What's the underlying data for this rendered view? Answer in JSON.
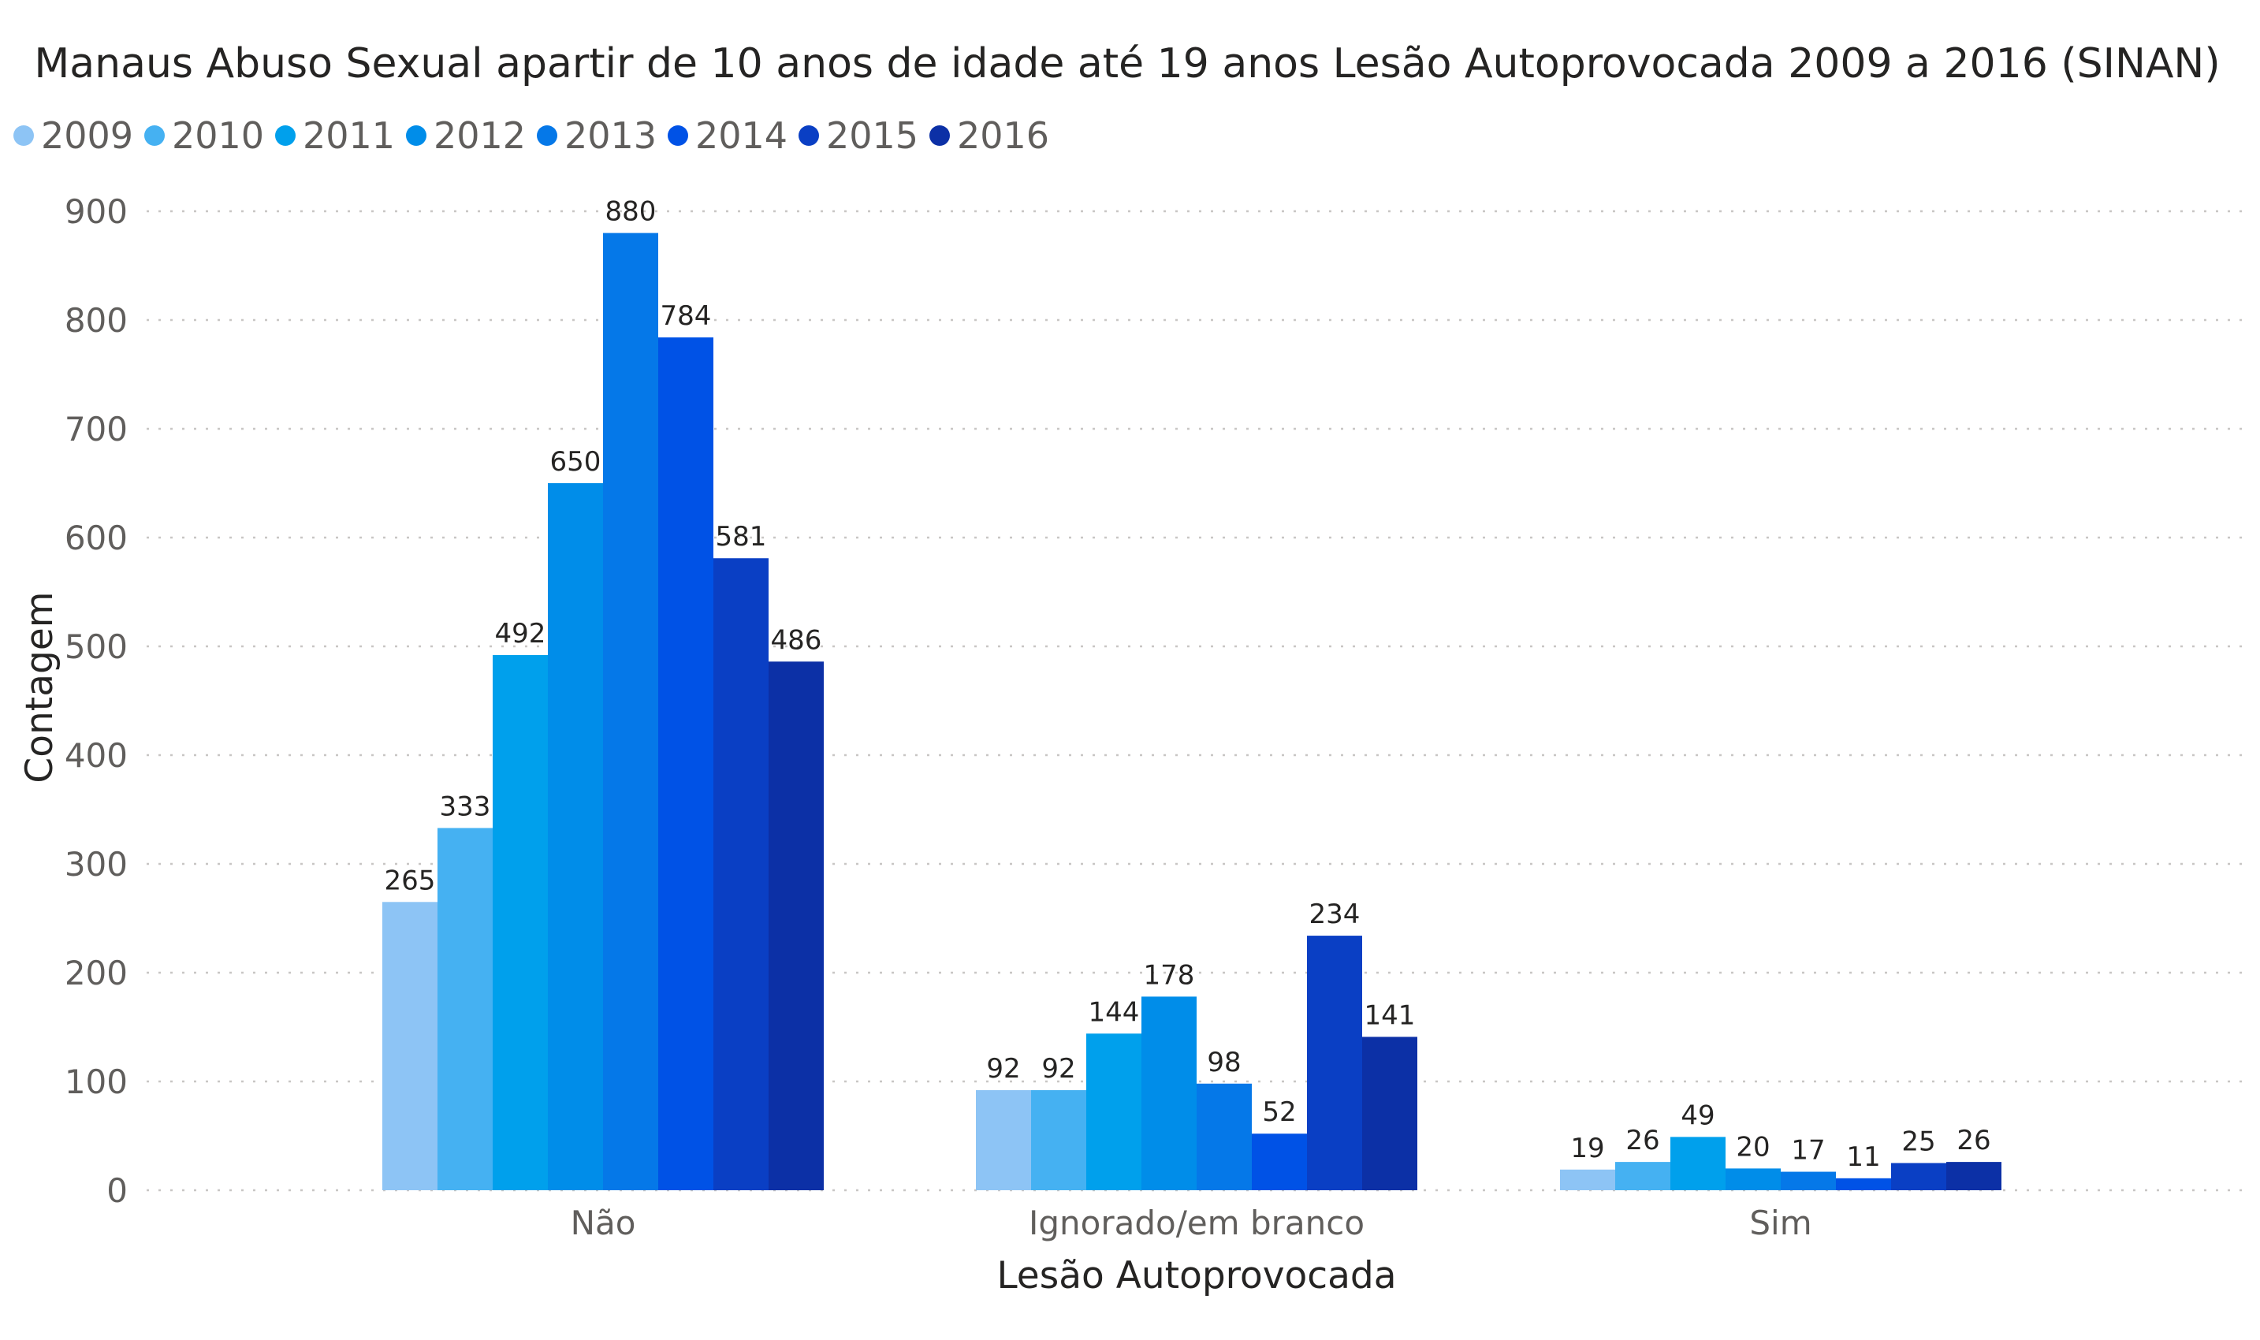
{
  "chart_data": {
    "type": "bar",
    "title": "Manaus Abuso Sexual apartir de 10 anos de idade até 19 anos Lesão Autoprovocada 2009 a 2016 (SINAN)",
    "xlabel": "Lesão Autoprovocada",
    "ylabel": "Contagem",
    "categories": [
      "Não",
      "Ignorado/em branco",
      "Sim"
    ],
    "series": [
      {
        "name": "2009",
        "color": "#8dc4f5",
        "values": [
          265,
          92,
          19
        ]
      },
      {
        "name": "2010",
        "color": "#45b1f2",
        "values": [
          333,
          92,
          26
        ]
      },
      {
        "name": "2011",
        "color": "#00a0ec",
        "values": [
          492,
          144,
          49
        ]
      },
      {
        "name": "2012",
        "color": "#008de9",
        "values": [
          650,
          178,
          20
        ]
      },
      {
        "name": "2013",
        "color": "#0578e8",
        "values": [
          880,
          98,
          17
        ]
      },
      {
        "name": "2014",
        "color": "#0052e6",
        "values": [
          784,
          52,
          11
        ]
      },
      {
        "name": "2015",
        "color": "#0a3fc4",
        "values": [
          581,
          234,
          25
        ]
      },
      {
        "name": "2016",
        "color": "#0c30a6",
        "values": [
          486,
          141,
          26
        ]
      }
    ],
    "ylim": [
      0,
      900
    ],
    "yticks": [
      "0",
      "100",
      "200",
      "300",
      "400",
      "500",
      "600",
      "700",
      "800",
      "900"
    ],
    "grid": true,
    "legend_position": "top-left"
  }
}
